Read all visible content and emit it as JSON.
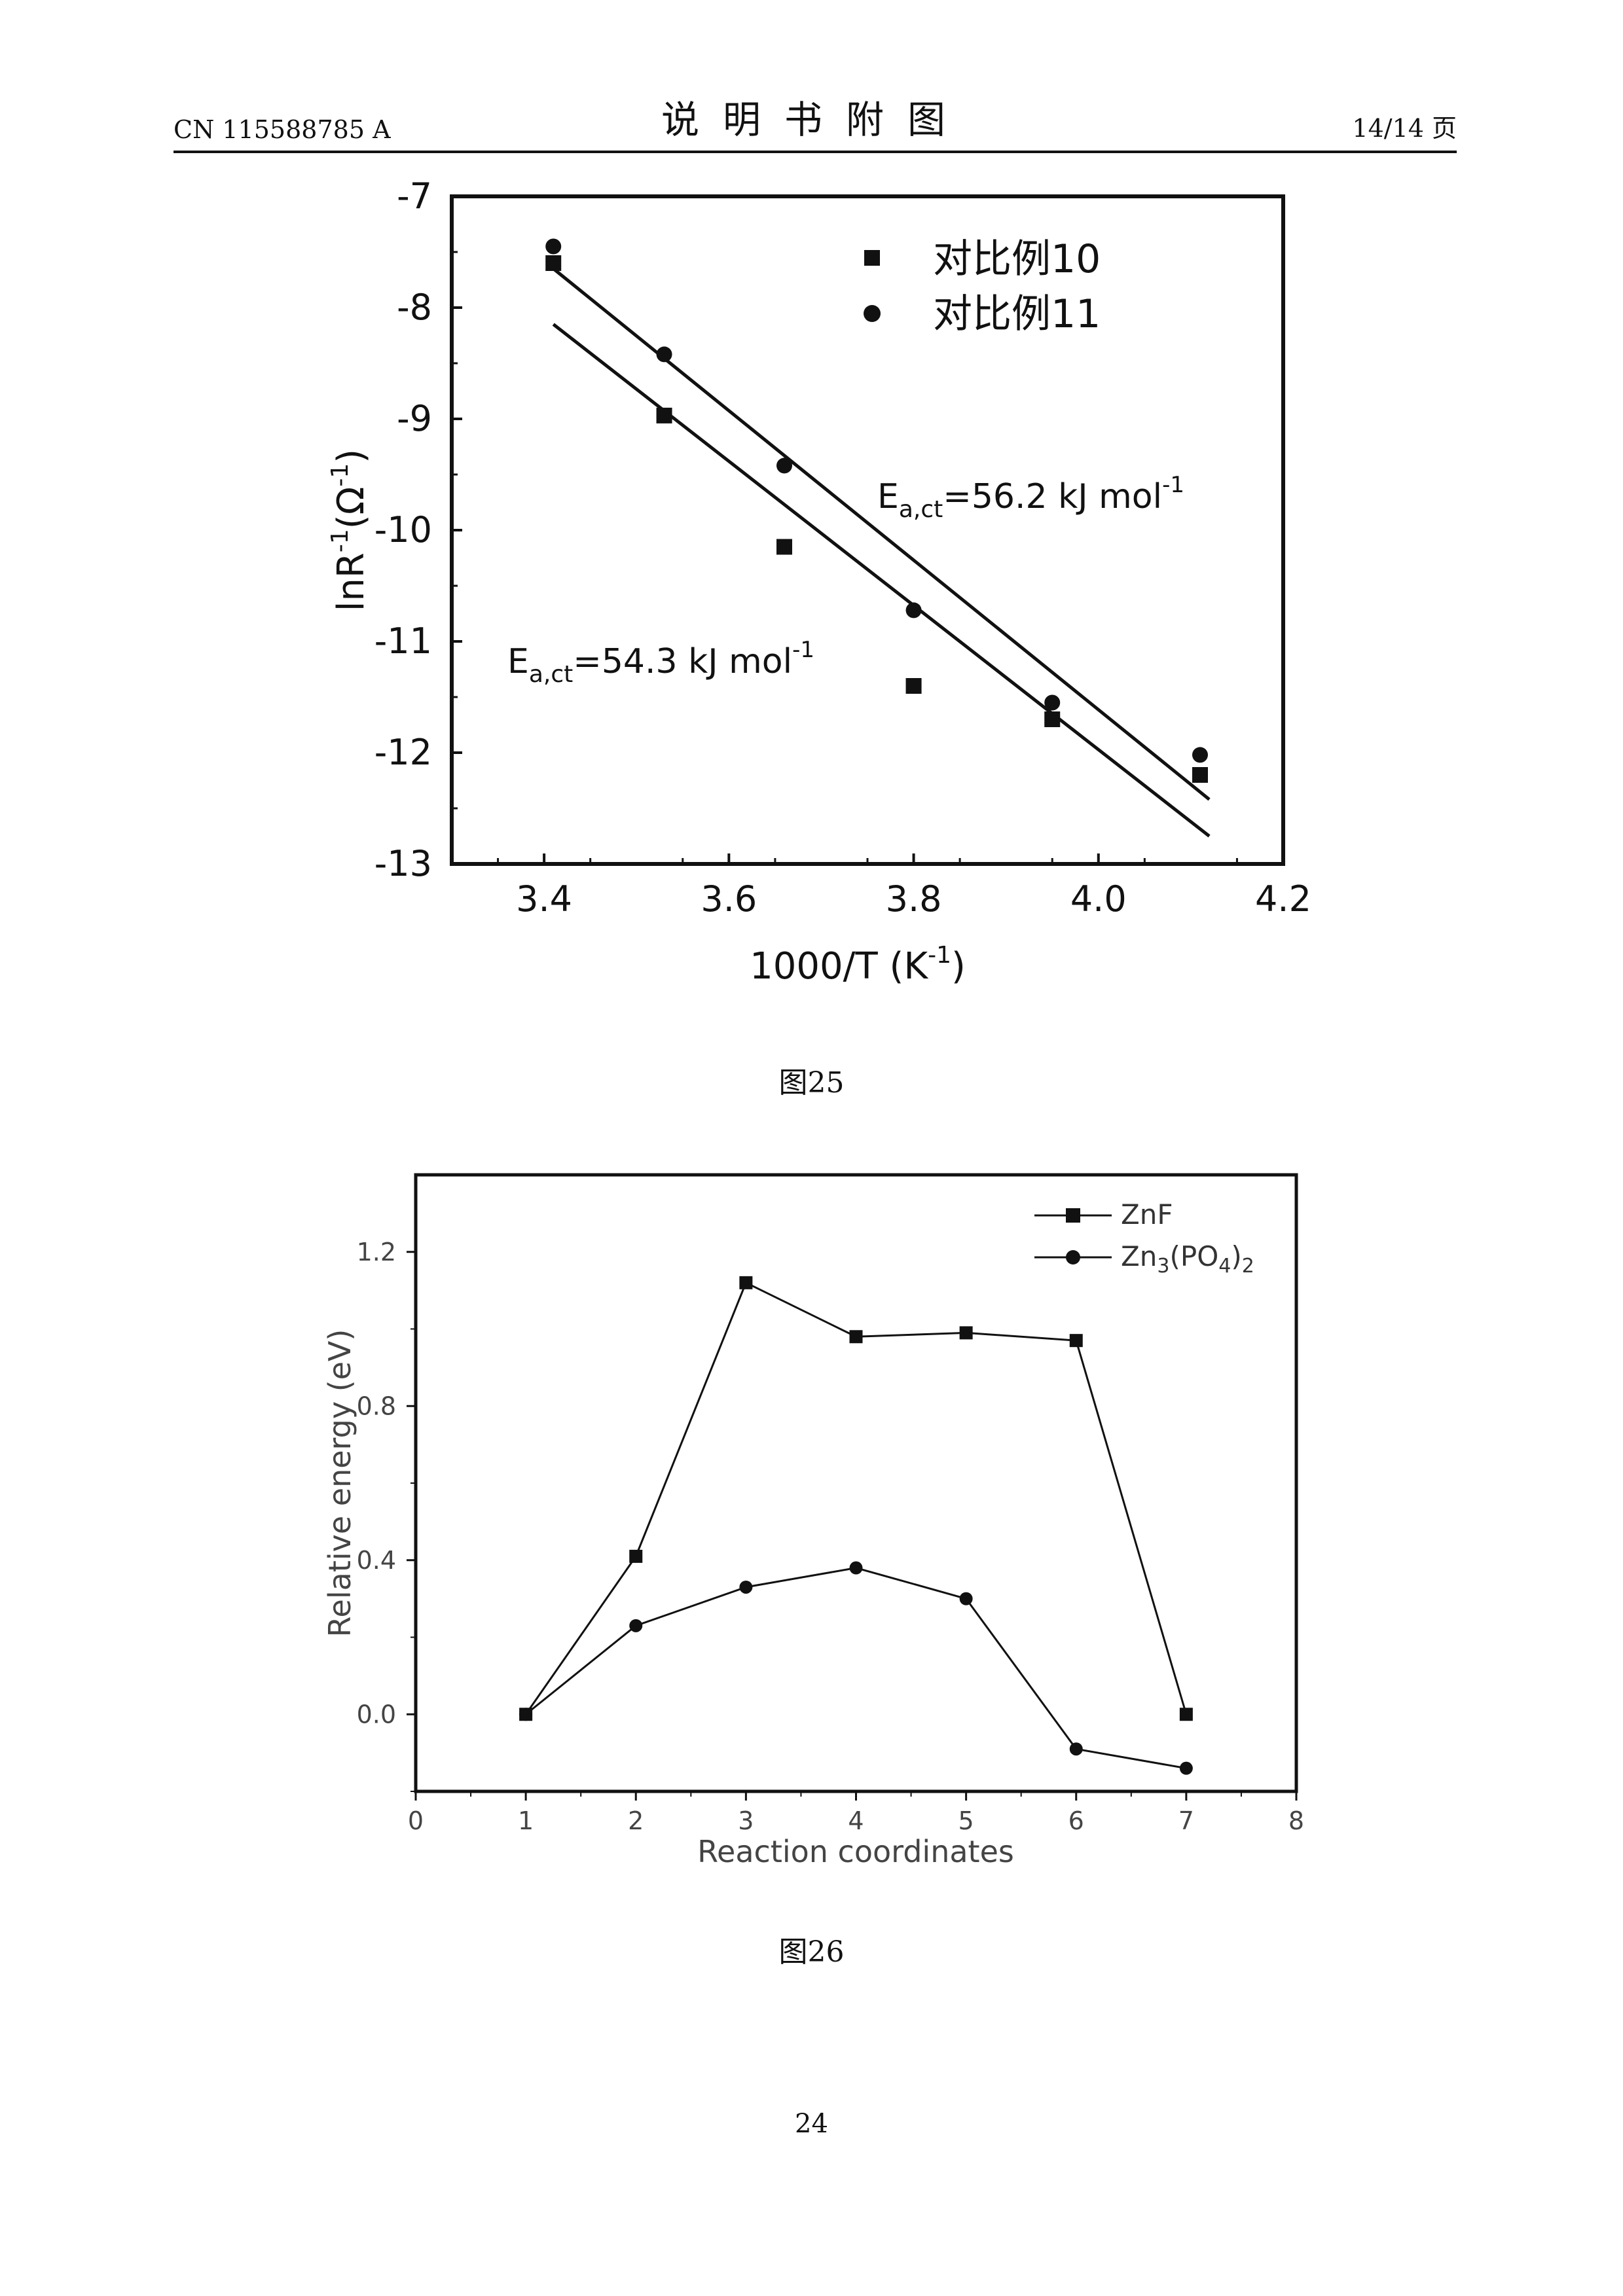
{
  "header": {
    "left": "CN 115588785 A",
    "center": "说明书附图",
    "right": "14/14 页"
  },
  "figure25": {
    "caption": "图25",
    "ylabel_main": "lnR",
    "ylabel_sup": "-1",
    "ylabel_paren_open": "(Ω",
    "ylabel_paren_sup": "-1",
    "ylabel_paren_close": ")",
    "xlabel_main": "1000/T (K",
    "xlabel_sup": "-1",
    "xlabel_close": ")",
    "annotation_upper": {
      "E": "E",
      "sub": "a,ct",
      "value": "=56.2 kJ mol",
      "sup": "-1"
    },
    "annotation_lower": {
      "E": "E",
      "sub": "a,ct",
      "value": "=54.3 kJ mol",
      "sup": "-1"
    }
  },
  "figure26": {
    "caption": "图26"
  },
  "page_number": "24",
  "chart_data": [
    {
      "type": "scatter",
      "xlim": [
        3.3,
        4.2
      ],
      "ylim": [
        -13,
        -7
      ],
      "xticks": [
        "3.4",
        "3.6",
        "3.8",
        "4.0",
        "4.2"
      ],
      "xtick_values": [
        3.4,
        3.6,
        3.8,
        4.0,
        4.2
      ],
      "yticks": [
        "-7",
        "-8",
        "-9",
        "-10",
        "-11",
        "-12",
        "-13"
      ],
      "ytick_values": [
        -7,
        -8,
        -9,
        -10,
        -11,
        -12,
        -13
      ],
      "legend_position": "top-right",
      "series": [
        {
          "name": "对比例10",
          "marker": "square",
          "x": [
            3.41,
            3.53,
            3.66,
            3.8,
            3.95,
            4.11
          ],
          "y": [
            -7.6,
            -8.97,
            -10.15,
            -11.4,
            -11.7,
            -12.2
          ],
          "fit": {
            "x": [
              3.41,
              4.12
            ],
            "y": [
              -8.15,
              -12.75
            ]
          }
        },
        {
          "name": "对比例11",
          "marker": "circle",
          "x": [
            3.41,
            3.53,
            3.66,
            3.8,
            3.95,
            4.11
          ],
          "y": [
            -7.45,
            -8.42,
            -9.42,
            -10.72,
            -11.55,
            -12.02
          ],
          "fit": {
            "x": [
              3.41,
              4.12
            ],
            "y": [
              -7.65,
              -12.42
            ]
          }
        }
      ]
    },
    {
      "type": "line",
      "xlabel": "Reaction coordinates",
      "ylabel": "Relative energy (eV)",
      "xlim": [
        0,
        8
      ],
      "ylim": [
        -0.2,
        1.4
      ],
      "xticks": [
        "0",
        "1",
        "2",
        "3",
        "4",
        "5",
        "6",
        "7",
        "8"
      ],
      "xtick_values": [
        0,
        1,
        2,
        3,
        4,
        5,
        6,
        7,
        8
      ],
      "yticks": [
        "0.0",
        "0.4",
        "0.8",
        "1.2"
      ],
      "ytick_values": [
        0.0,
        0.4,
        0.8,
        1.2
      ],
      "legend_position": "top-right",
      "series": [
        {
          "name": "ZnF",
          "marker": "square",
          "x": [
            1,
            2,
            3,
            4,
            5,
            6,
            7
          ],
          "y": [
            0.0,
            0.41,
            1.12,
            0.98,
            0.99,
            0.97,
            0.0
          ]
        },
        {
          "name_main": "Zn",
          "name_sub1": "3",
          "name_mid": "(PO",
          "name_sub2": "4",
          "name_close": ")",
          "name_sub3": "2",
          "marker": "circle",
          "x": [
            1,
            2,
            3,
            4,
            5,
            6,
            7
          ],
          "y": [
            0.0,
            0.23,
            0.33,
            0.38,
            0.3,
            -0.09,
            -0.14
          ]
        }
      ]
    }
  ]
}
